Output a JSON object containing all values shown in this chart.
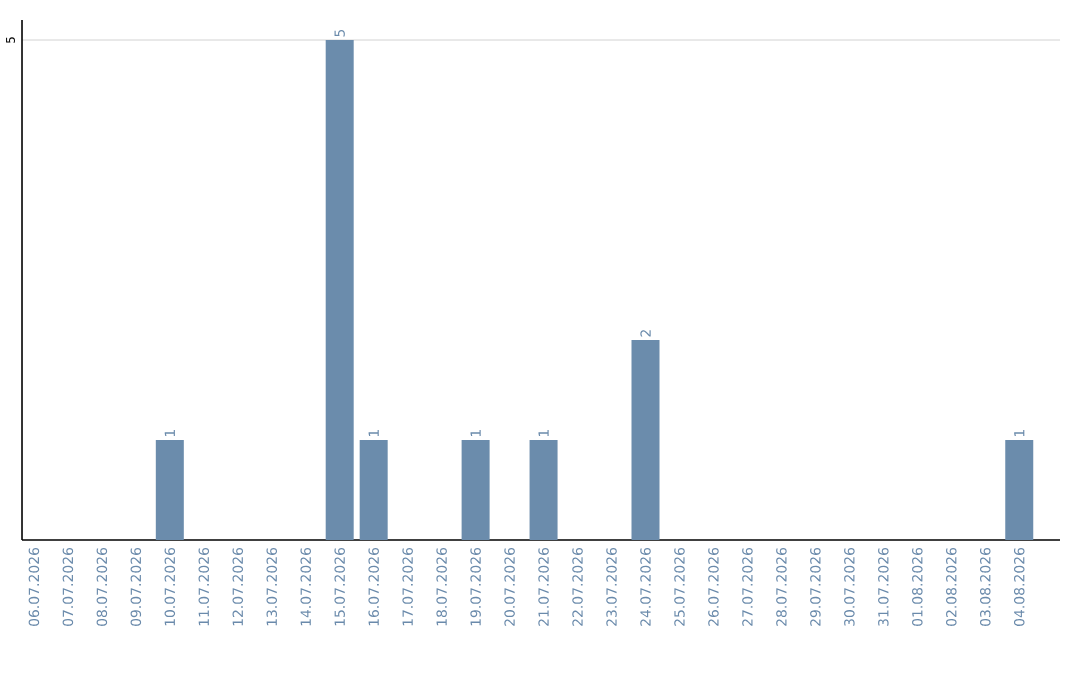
{
  "chart_data": {
    "type": "bar",
    "categories": [
      "06.07.2026",
      "07.07.2026",
      "08.07.2026",
      "09.07.2026",
      "10.07.2026",
      "11.07.2026",
      "12.07.2026",
      "13.07.2026",
      "14.07.2026",
      "15.07.2026",
      "16.07.2026",
      "17.07.2026",
      "18.07.2026",
      "19.07.2026",
      "20.07.2026",
      "21.07.2026",
      "22.07.2026",
      "23.07.2026",
      "24.07.2026",
      "25.07.2026",
      "26.07.2026",
      "27.07.2026",
      "28.07.2026",
      "29.07.2026",
      "30.07.2026",
      "31.07.2026",
      "01.08.2026",
      "02.08.2026",
      "03.08.2026",
      "04.08.2026"
    ],
    "values": [
      0,
      0,
      0,
      0,
      1,
      0,
      0,
      0,
      0,
      5,
      1,
      0,
      0,
      1,
      0,
      1,
      0,
      0,
      2,
      0,
      0,
      0,
      0,
      0,
      0,
      0,
      0,
      0,
      0,
      1
    ],
    "value_labels": [
      null,
      null,
      null,
      null,
      "1",
      null,
      null,
      null,
      null,
      "5",
      "1",
      null,
      null,
      "1",
      null,
      "1",
      null,
      null,
      "2",
      null,
      null,
      null,
      null,
      null,
      null,
      null,
      null,
      null,
      null,
      "1"
    ],
    "color": "#6b8cac",
    "ylim": [
      0,
      5.2
    ],
    "yticks": [
      5
    ],
    "grid": "y"
  }
}
